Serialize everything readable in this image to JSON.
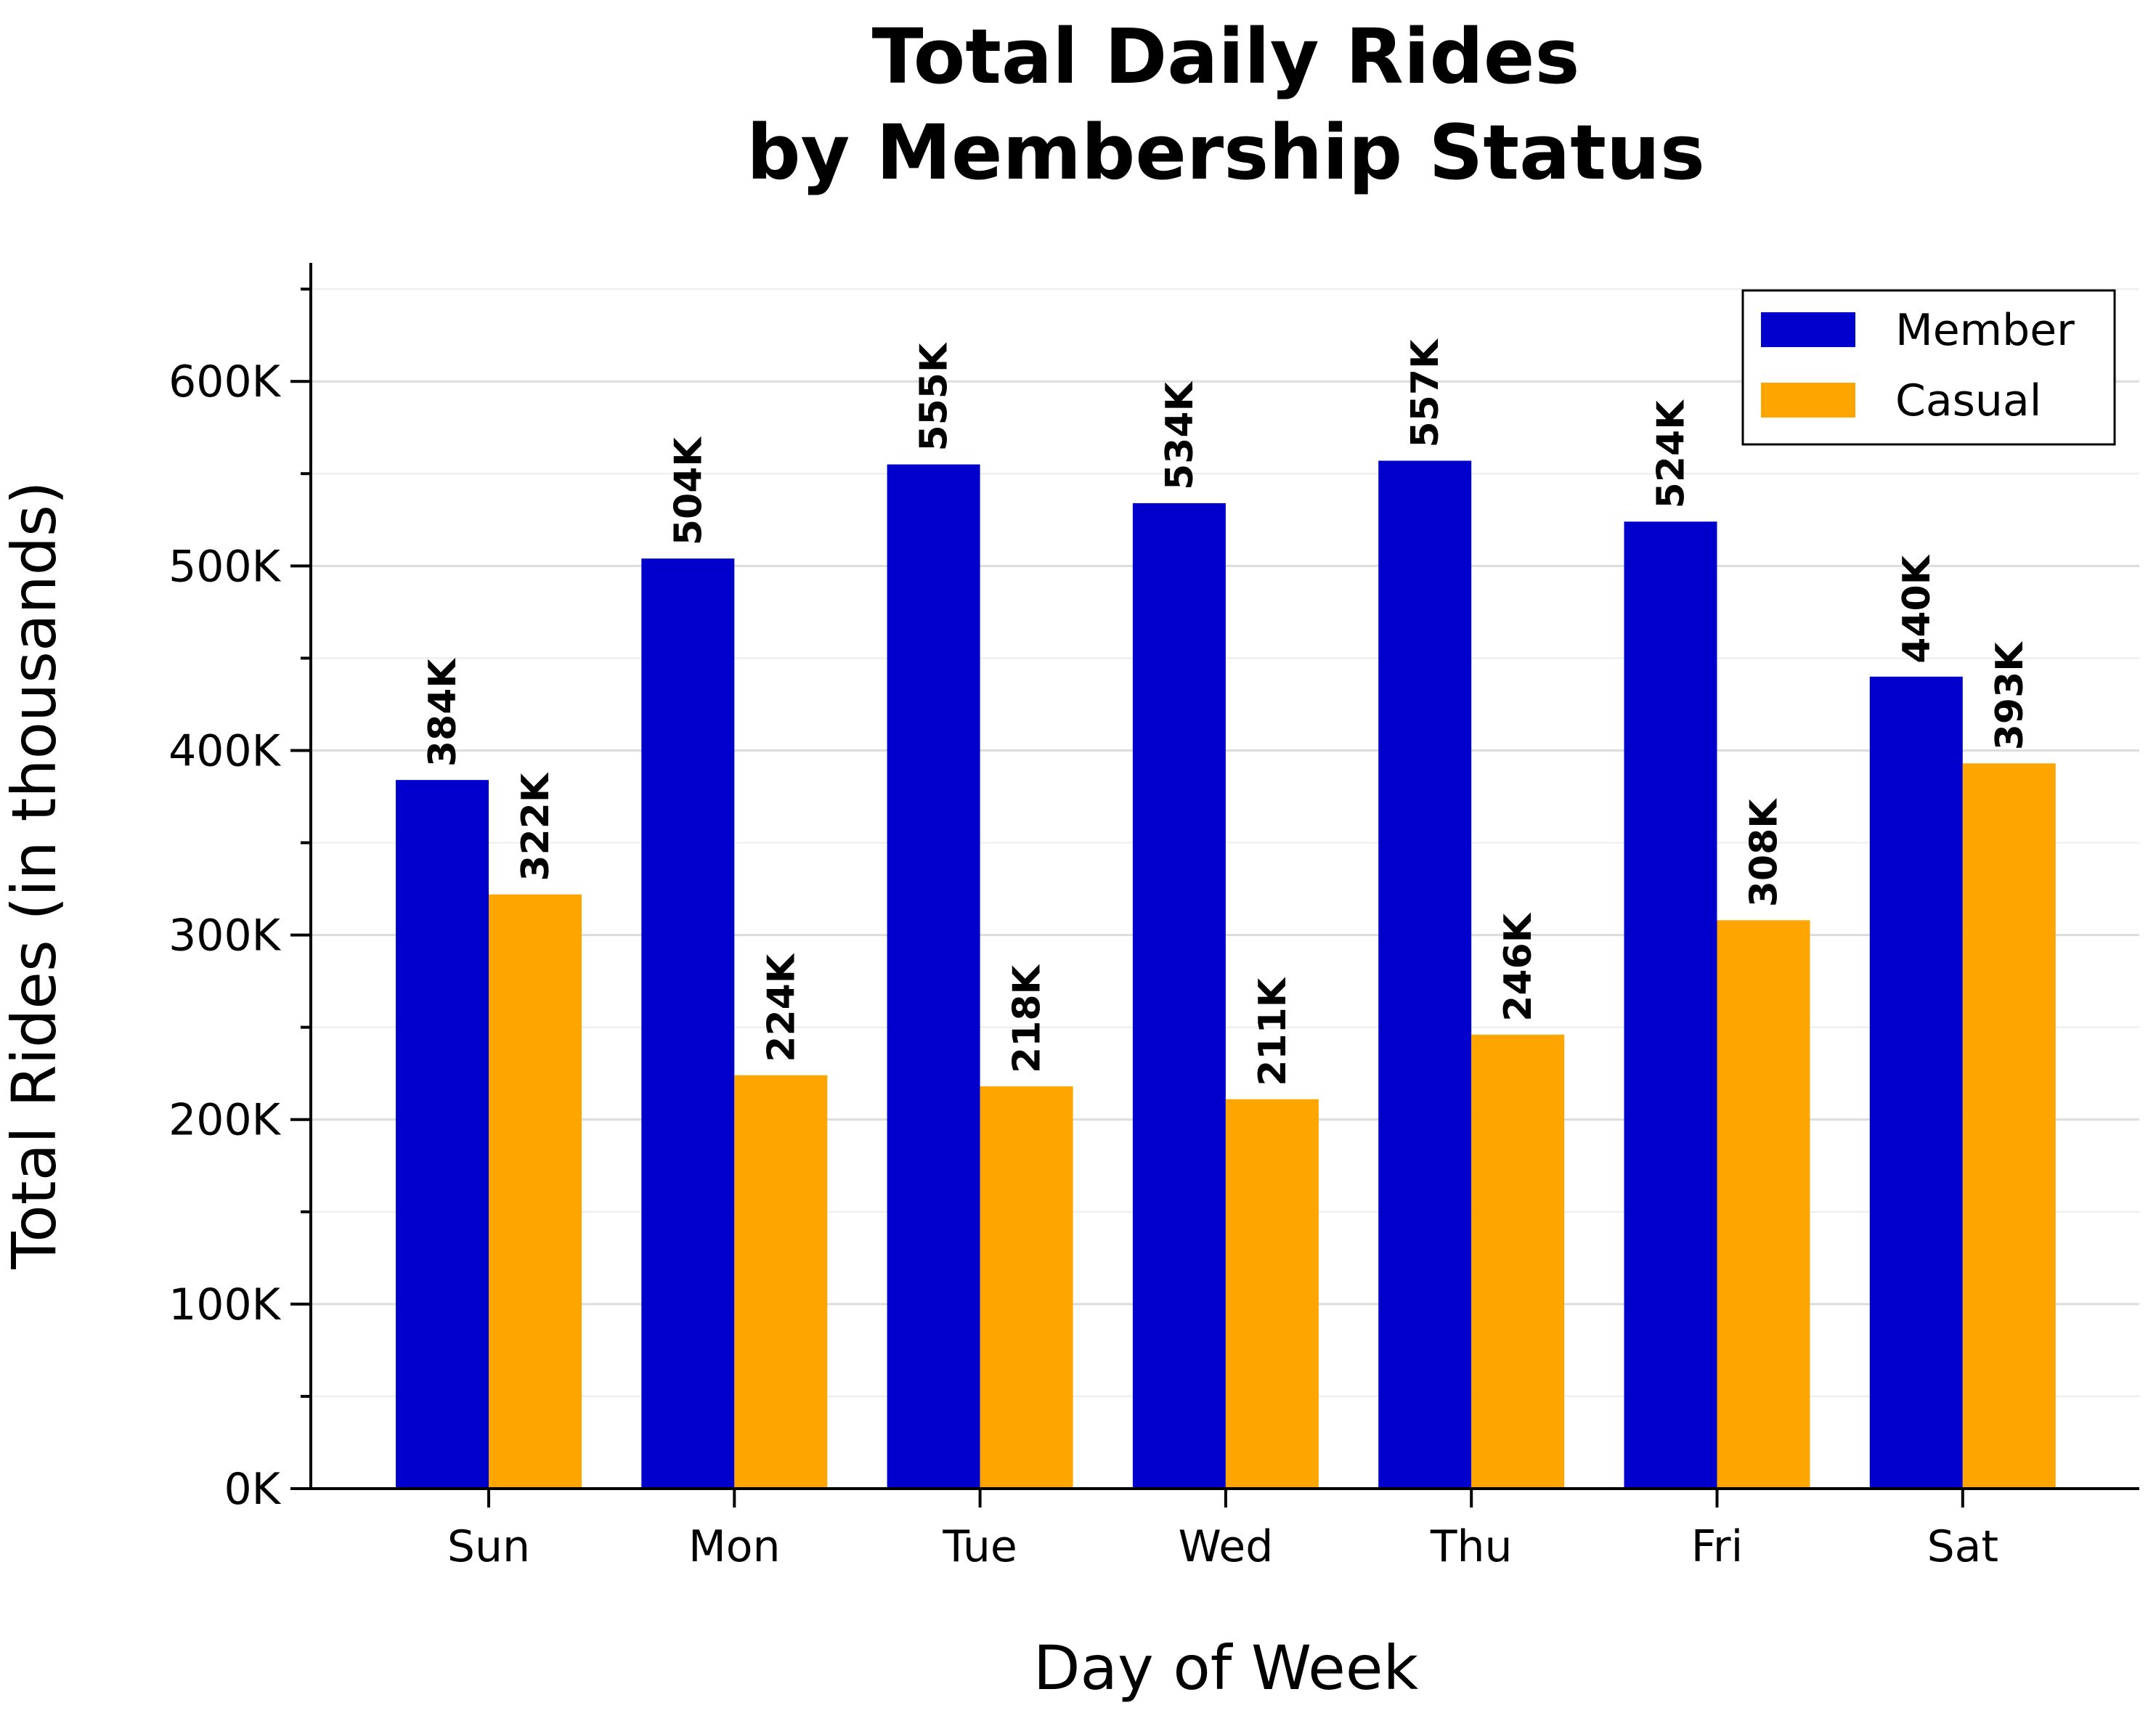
{
  "chart_data": {
    "type": "bar",
    "title_lines": [
      "Total Daily Rides",
      "by Membership Status"
    ],
    "xlabel": "Day of Week",
    "ylabel": "Total Rides (in thousands)",
    "categories": [
      "Sun",
      "Mon",
      "Tue",
      "Wed",
      "Thu",
      "Fri",
      "Sat"
    ],
    "series": [
      {
        "name": "Member",
        "color": "#0000cd",
        "values": [
          384,
          504,
          555,
          534,
          557,
          524,
          440
        ],
        "labels": [
          "384K",
          "504K",
          "555K",
          "534K",
          "557K",
          "524K",
          "440K"
        ]
      },
      {
        "name": "Casual",
        "color": "#ffa500",
        "values": [
          322,
          224,
          218,
          211,
          246,
          308,
          393
        ],
        "labels": [
          "322K",
          "224K",
          "218K",
          "211K",
          "246K",
          "308K",
          "393K"
        ]
      }
    ],
    "ylim": [
      0,
      665
    ],
    "y_unit": "thousands",
    "yticks": [
      0,
      100,
      200,
      300,
      400,
      500,
      600
    ],
    "ytick_labels": [
      "0K",
      "100K",
      "200K",
      "300K",
      "400K",
      "500K",
      "600K"
    ],
    "minor_yticks": [
      50,
      150,
      250,
      350,
      450,
      550,
      650
    ],
    "grid": true,
    "legend_position": "top-right"
  }
}
